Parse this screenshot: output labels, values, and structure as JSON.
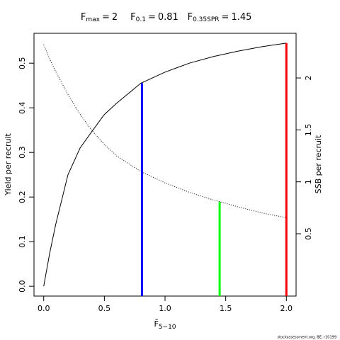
{
  "chart_data": {
    "type": "line",
    "equals": "=",
    "reference_points": [
      {
        "symbol": "F",
        "subscript": "max",
        "value": 2,
        "color": "#ff0000",
        "top": 0.545,
        "axis": "y"
      },
      {
        "symbol": "F",
        "subscript": "0.1",
        "value": 0.81,
        "color": "#0000ff",
        "top": 0.455,
        "axis": "y"
      },
      {
        "symbol": "F",
        "subscript": "0.35SPR",
        "value": 1.45,
        "color": "#00ff00",
        "top": 0.806,
        "axis": "y2"
      }
    ],
    "xlabel": {
      "symbol": "F̄",
      "subscript": "5−10"
    },
    "ylabel": "Yield per recruit",
    "y2label": "SSB per recruit",
    "footer": "stockassessment.org, BE, r10199",
    "x": [
      0,
      0.05,
      0.1,
      0.2,
      0.3,
      0.4,
      0.5,
      0.6,
      0.8,
      1.0,
      1.2,
      1.4,
      1.6,
      1.8,
      2.0
    ],
    "series": [
      {
        "name": "Yield per recruit",
        "color": "#000000",
        "style": "solid",
        "axis": "y",
        "values": [
          0,
          0.075,
          0.14,
          0.25,
          0.31,
          0.348,
          0.385,
          0.41,
          0.455,
          0.48,
          0.5,
          0.515,
          0.527,
          0.537,
          0.545
        ]
      },
      {
        "name": "SSB per recruit",
        "color": "#000000",
        "style": "dotted",
        "axis": "y2",
        "values": [
          2.32,
          2.18,
          2.06,
          1.84,
          1.65,
          1.49,
          1.36,
          1.25,
          1.1,
          0.99,
          0.9,
          0.825,
          0.76,
          0.7,
          0.655
        ]
      }
    ],
    "xlim": [
      -0.08,
      2.08
    ],
    "xticks": [
      {
        "value": 0,
        "label": "0.0"
      },
      0.5,
      {
        "value": 1,
        "label": "1.0"
      },
      1.5,
      {
        "value": 2,
        "label": "2.0"
      }
    ],
    "ylim": [
      -0.022,
      0.567
    ],
    "yticks": [
      {
        "value": 0,
        "label": "0.0"
      },
      0.1,
      0.2,
      0.3,
      0.4,
      0.5
    ],
    "y2lim": [
      -0.1,
      2.43
    ],
    "y2ticks": [
      0.5,
      1,
      1.5,
      2
    ]
  }
}
